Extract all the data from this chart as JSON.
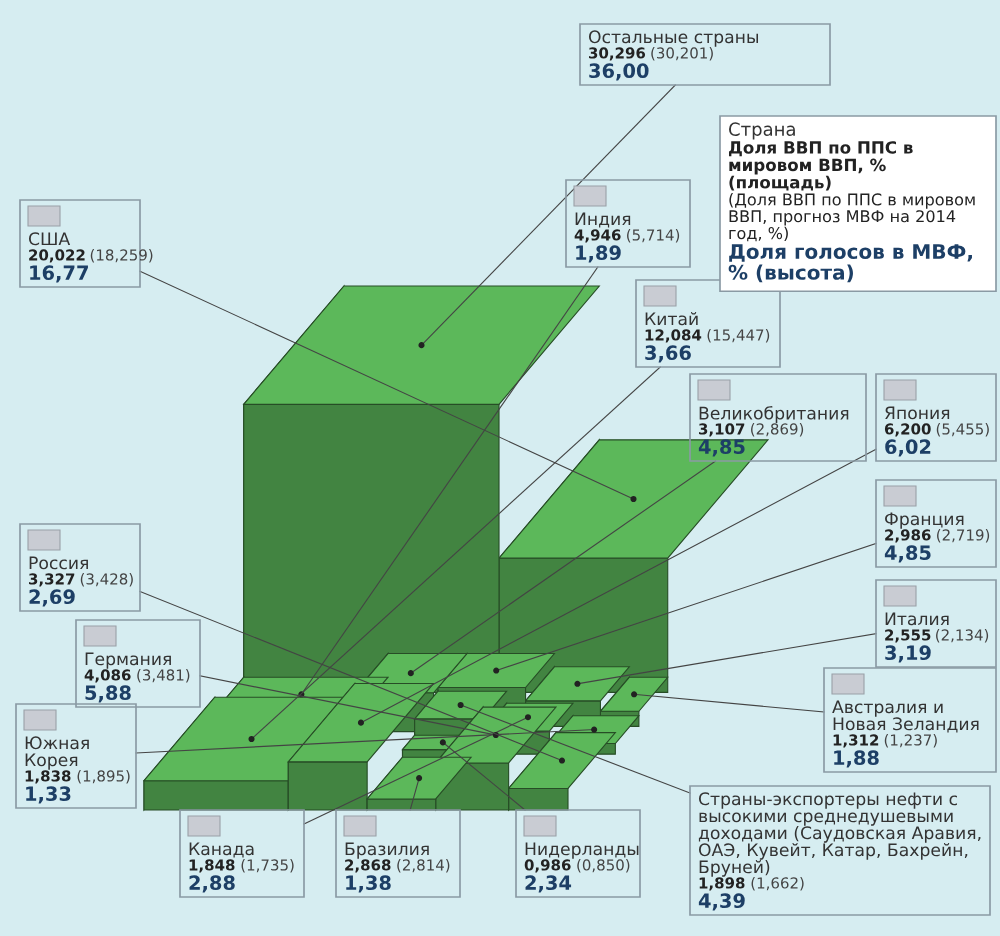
{
  "chart_data": {
    "type": "other",
    "color": "#5cb85a",
    "annotations": [
      "Страна",
      "Доля ВВП по ППС в мировом ВВП, % (площадь)",
      "(Доля ВВП по ППС в мировом ВВП, прогноз МВФ на 2014 год, %)",
      "Доля голосов в МВФ, % (высота)"
    ],
    "categories": [
      "Остальные страны",
      "США",
      "Индия",
      "Китай",
      "Великобритания",
      "Япония",
      "Франция",
      "Италия",
      "Австралия и Новая Зеландия",
      "Страны-экспортеры нефти с высокими среднедушевыми доходами (Саудовская Аравия, ОАЭ, Кувейт, Катар, Бахрейн, Бруней)",
      "Нидерланды",
      "Бразилия",
      "Канада",
      "Южная Корея",
      "Германия",
      "Россия"
    ],
    "series": [
      {
        "values": [
          30.296,
          20.022,
          4.946,
          12.084,
          3.107,
          6.2,
          2.986,
          2.555,
          1.312,
          1.898,
          0.986,
          2.868,
          1.848,
          1.838,
          4.086,
          3.327
        ],
        "value_labels": [
          "30,296",
          "20,022",
          "4,946",
          "12,084",
          "3,107",
          "6,200",
          "2,986",
          "2,555",
          "1,312",
          "1,898",
          "0,986",
          "2,868",
          "1,848",
          "1,838",
          "4,086",
          "3,327"
        ]
      },
      {
        "values": [
          30.201,
          18.259,
          5.714,
          15.447,
          2.869,
          5.455,
          2.719,
          2.134,
          1.237,
          1.662,
          0.85,
          2.814,
          1.735,
          1.895,
          3.481,
          3.428
        ],
        "value_labels": [
          "(30,201)",
          "(18,259)",
          "(5,714)",
          "(15,447)",
          "(2,869)",
          "(5,455)",
          "(2,719)",
          "(2,134)",
          "(1,237)",
          "(1,662)",
          "(0,850)",
          "(2,814)",
          "(1,735)",
          "(1,895)",
          "(3,481)",
          "(3,428)"
        ]
      },
      {
        "values": [
          36.0,
          16.77,
          1.89,
          3.66,
          4.85,
          6.02,
          4.85,
          3.19,
          1.88,
          4.39,
          2.34,
          1.38,
          2.88,
          1.33,
          5.88,
          2.69
        ],
        "value_labels": [
          "36,00",
          "16,77",
          "1,89",
          "3,66",
          "4,85",
          "6,02",
          "4,85",
          "3,19",
          "1,88",
          "4,39",
          "2,34",
          "1,38",
          "2,88",
          "1,33",
          "5,88",
          "2,69"
        ]
      }
    ]
  }
}
